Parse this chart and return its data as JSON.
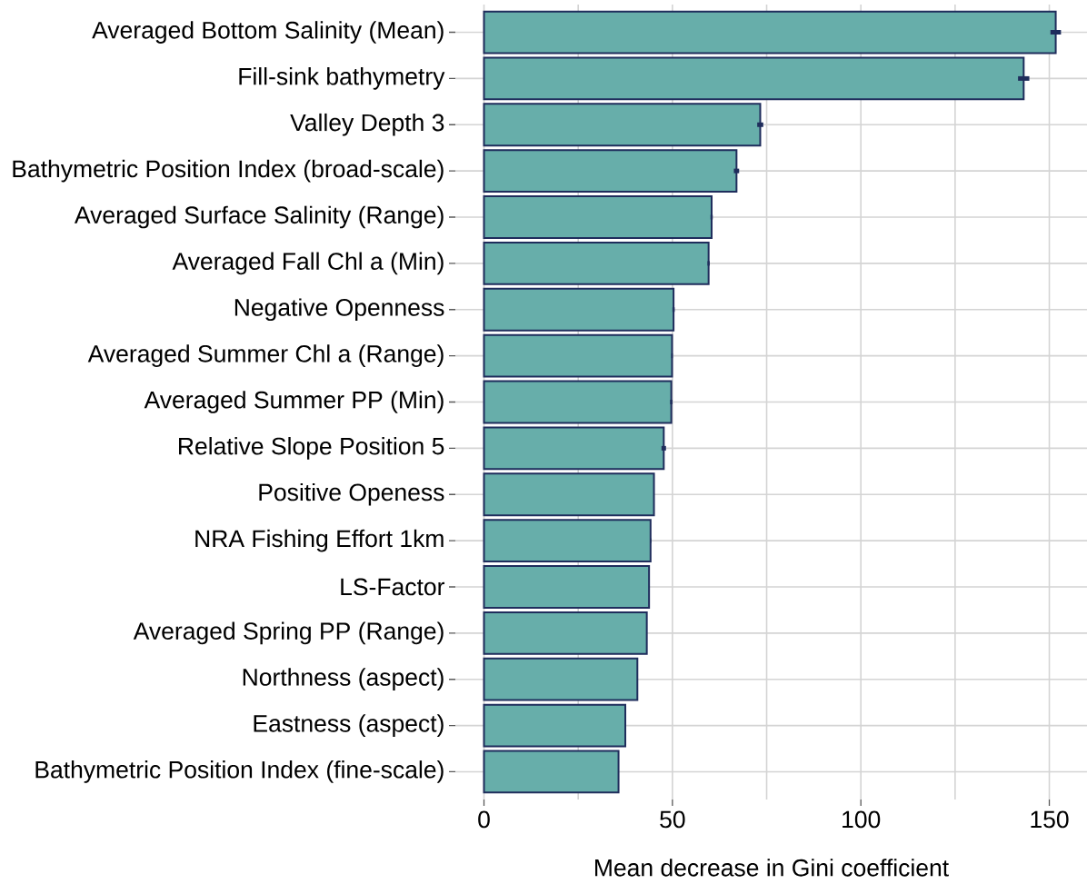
{
  "chart_data": {
    "type": "bar",
    "orientation": "horizontal",
    "categories": [
      "Averaged Bottom Salinity (Mean)",
      "Fill-sink bathymetry",
      "Valley Depth 3",
      "Bathymetric Position Index (broad-scale)",
      "Averaged Surface Salinity (Range)",
      "Averaged Fall Chl a (Min)",
      "Negative Openness",
      "Averaged Summer Chl a (Range)",
      "Averaged Summer PP (Min)",
      "Relative Slope Position 5",
      "Positive Openess",
      "NRA Fishing Effort 1km",
      "LS-Factor",
      "Averaged Spring PP (Range)",
      "Northness (aspect)",
      "Eastness (aspect)",
      "Bathymetric Position Index (fine-scale)"
    ],
    "values": [
      151.7,
      143.2,
      73.3,
      67.0,
      60.4,
      59.6,
      50.3,
      49.9,
      49.7,
      47.7,
      45.1,
      44.2,
      43.8,
      43.2,
      40.7,
      37.5,
      35.7
    ],
    "errors": [
      1.4,
      1.5,
      0.8,
      0.7,
      0.3,
      0.3,
      0.3,
      0.2,
      0.3,
      0.6,
      null,
      0.2,
      null,
      null,
      null,
      null,
      null
    ],
    "color": "#67aeaa",
    "xlabel": "Mean decrease in Gini coefficient",
    "xlim": [
      -7.6,
      160
    ],
    "xticks": [
      0,
      {
        "value": 25,
        "label": null
      },
      50,
      {
        "value": 75,
        "label": null
      },
      100,
      {
        "value": 125,
        "label": null
      },
      150
    ],
    "grid": true
  }
}
